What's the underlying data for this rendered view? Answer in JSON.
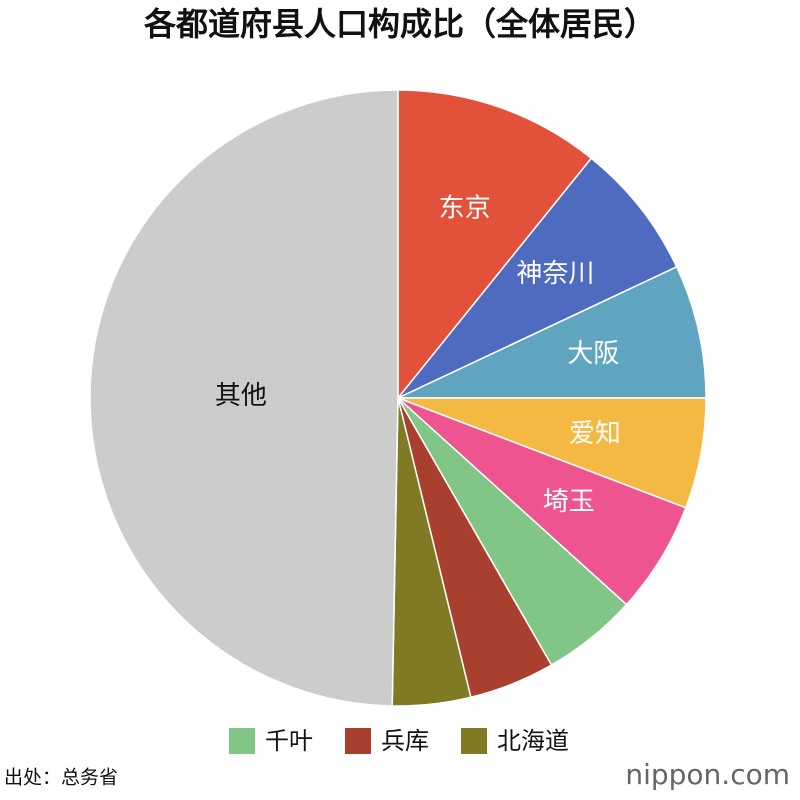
{
  "chart_data": {
    "type": "pie",
    "title": "各都道府县人口构成比（全体居民）",
    "categories": [
      "东京",
      "神奈川",
      "大阪",
      "爱知",
      "埼玉",
      "千叶",
      "兵库",
      "北海道",
      "其他"
    ],
    "values": [
      10.8,
      7.2,
      7.0,
      5.8,
      5.9,
      5.0,
      4.5,
      4.1,
      49.7
    ],
    "colors": [
      "#e2523a",
      "#4f6bbf",
      "#5fa5bf",
      "#f4b942",
      "#ee5590",
      "#82c687",
      "#a93f2e",
      "#7f7a23",
      "#cccccc"
    ],
    "legend": "bottom",
    "source": "出处：总务省",
    "watermark": "nippon.com"
  }
}
